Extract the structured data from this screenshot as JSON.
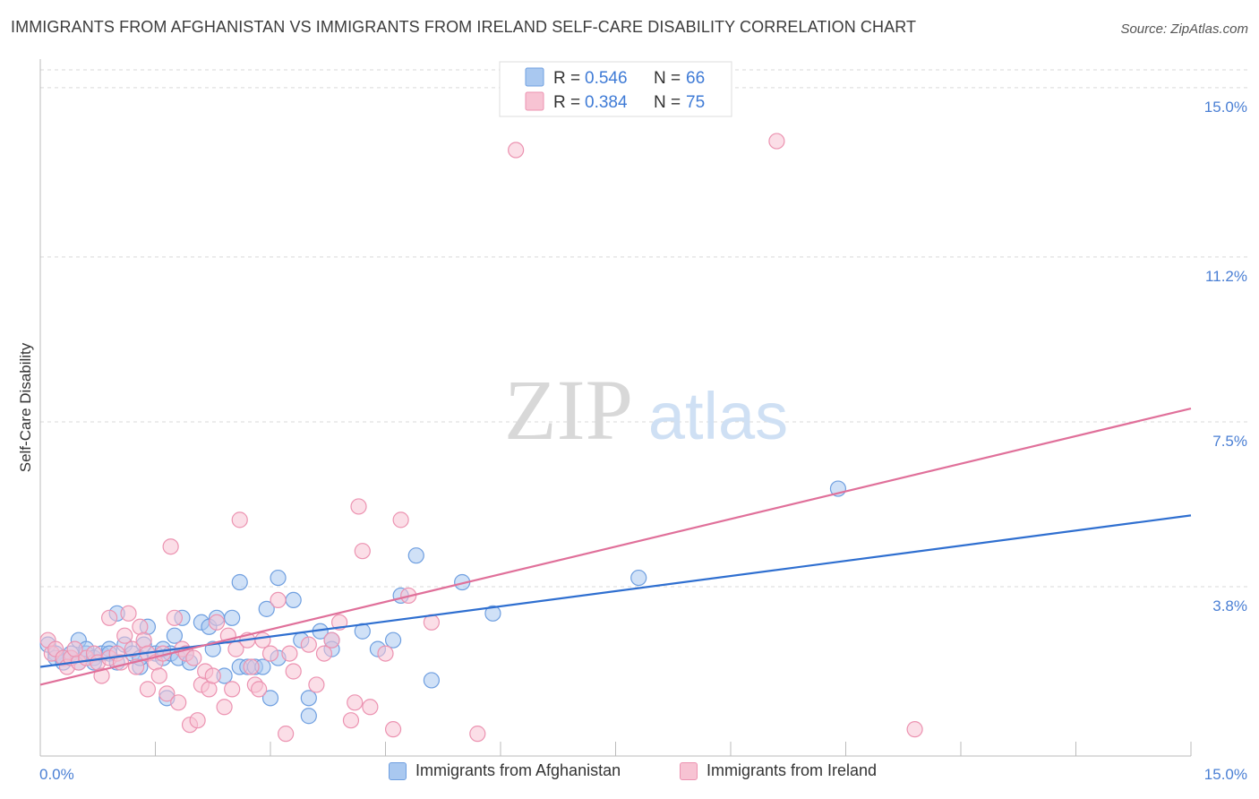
{
  "header": {
    "title": "IMMIGRANTS FROM AFGHANISTAN VS IMMIGRANTS FROM IRELAND SELF-CARE DISABILITY CORRELATION CHART",
    "source": "Source: ZipAtlas.com"
  },
  "watermark": {
    "zip": "ZIP",
    "atlas": "atlas"
  },
  "colors": {
    "afghanistan_fill": "#a9c8f0",
    "afghanistan_stroke": "#6f9fe0",
    "afghanistan_line": "#2f6fd0",
    "ireland_fill": "#f7c3d3",
    "ireland_stroke": "#ec93b1",
    "ireland_line": "#e0709a",
    "tick_label": "#4a7fd4",
    "grid": "#d9d9d9"
  },
  "legend_top": {
    "rows": [
      {
        "r_label": "R = ",
        "r_value": "0.546",
        "n_label": "N = ",
        "n_value": "66"
      },
      {
        "r_label": "R = ",
        "r_value": "0.384",
        "n_label": "N = ",
        "n_value": "75"
      }
    ]
  },
  "legend_bottom": {
    "items": [
      "Immigrants from Afghanistan",
      "Immigrants from Ireland"
    ]
  },
  "chart_data": {
    "type": "scatter",
    "title": "IMMIGRANTS FROM AFGHANISTAN VS IMMIGRANTS FROM IRELAND SELF-CARE DISABILITY CORRELATION CHART",
    "xlabel": "",
    "ylabel": "Self-Care Disability",
    "xlim": [
      0,
      15
    ],
    "ylim": [
      0,
      15.4
    ],
    "x_tick_labels": [
      "0.0%",
      "15.0%"
    ],
    "y_ticks": [
      3.8,
      7.5,
      11.2,
      15.0
    ],
    "y_tick_labels": [
      "3.8%",
      "7.5%",
      "11.2%",
      "15.0%"
    ],
    "x_minor_ticks": [
      1.5,
      3.0,
      4.5,
      6.0,
      7.5,
      9.0,
      10.5,
      12.0,
      13.5,
      15.0
    ],
    "grid": true,
    "legend": "top-center",
    "series": [
      {
        "name": "Immigrants from Afghanistan",
        "R": 0.546,
        "N": 66,
        "trend": {
          "x": [
            0,
            15
          ],
          "y": [
            2.0,
            5.4
          ]
        },
        "points": [
          [
            0.1,
            2.5
          ],
          [
            0.2,
            2.3
          ],
          [
            0.2,
            2.2
          ],
          [
            0.3,
            2.1
          ],
          [
            0.3,
            2.2
          ],
          [
            0.4,
            2.2
          ],
          [
            0.4,
            2.3
          ],
          [
            0.5,
            2.6
          ],
          [
            0.5,
            2.1
          ],
          [
            0.6,
            2.3
          ],
          [
            0.6,
            2.4
          ],
          [
            0.7,
            2.2
          ],
          [
            0.7,
            2.1
          ],
          [
            0.8,
            2.3
          ],
          [
            0.9,
            2.4
          ],
          [
            0.9,
            2.3
          ],
          [
            1.0,
            2.1
          ],
          [
            1.0,
            3.2
          ],
          [
            1.1,
            2.5
          ],
          [
            1.2,
            2.3
          ],
          [
            1.3,
            2.0
          ],
          [
            1.3,
            2.2
          ],
          [
            1.35,
            2.5
          ],
          [
            1.4,
            2.9
          ],
          [
            1.5,
            2.3
          ],
          [
            1.6,
            2.2
          ],
          [
            1.6,
            2.4
          ],
          [
            1.65,
            1.3
          ],
          [
            1.7,
            2.3
          ],
          [
            1.75,
            2.7
          ],
          [
            1.8,
            2.2
          ],
          [
            1.85,
            3.1
          ],
          [
            1.9,
            2.3
          ],
          [
            1.95,
            2.1
          ],
          [
            2.1,
            3.0
          ],
          [
            2.2,
            2.9
          ],
          [
            2.25,
            2.4
          ],
          [
            2.3,
            3.1
          ],
          [
            2.4,
            1.8
          ],
          [
            2.5,
            3.1
          ],
          [
            2.6,
            3.9
          ],
          [
            2.6,
            2.0
          ],
          [
            2.7,
            2.0
          ],
          [
            2.8,
            2.0
          ],
          [
            2.9,
            2.0
          ],
          [
            2.95,
            3.3
          ],
          [
            3.0,
            1.3
          ],
          [
            3.1,
            4.0
          ],
          [
            3.1,
            2.2
          ],
          [
            3.3,
            3.5
          ],
          [
            3.4,
            2.6
          ],
          [
            3.5,
            1.3
          ],
          [
            3.5,
            0.9
          ],
          [
            3.65,
            2.8
          ],
          [
            3.8,
            2.6
          ],
          [
            3.8,
            2.4
          ],
          [
            4.2,
            2.8
          ],
          [
            4.4,
            2.4
          ],
          [
            4.6,
            2.6
          ],
          [
            4.7,
            3.6
          ],
          [
            4.9,
            4.5
          ],
          [
            5.1,
            1.7
          ],
          [
            5.5,
            3.9
          ],
          [
            5.9,
            3.2
          ],
          [
            7.8,
            4.0
          ],
          [
            10.4,
            6.0
          ]
        ]
      },
      {
        "name": "Immigrants from Ireland",
        "R": 0.384,
        "N": 75,
        "trend": {
          "x": [
            0,
            15
          ],
          "y": [
            1.6,
            7.8
          ]
        },
        "points": [
          [
            0.1,
            2.6
          ],
          [
            0.15,
            2.3
          ],
          [
            0.2,
            2.4
          ],
          [
            0.3,
            2.2
          ],
          [
            0.35,
            2.0
          ],
          [
            0.4,
            2.2
          ],
          [
            0.5,
            2.1
          ],
          [
            0.6,
            2.2
          ],
          [
            0.7,
            2.3
          ],
          [
            0.75,
            2.1
          ],
          [
            0.8,
            1.8
          ],
          [
            0.9,
            2.2
          ],
          [
            1.0,
            2.3
          ],
          [
            1.05,
            2.1
          ],
          [
            1.1,
            2.7
          ],
          [
            1.15,
            3.2
          ],
          [
            1.2,
            2.4
          ],
          [
            1.25,
            2.0
          ],
          [
            1.3,
            2.9
          ],
          [
            1.35,
            2.6
          ],
          [
            1.4,
            2.3
          ],
          [
            1.4,
            1.5
          ],
          [
            1.5,
            2.1
          ],
          [
            1.55,
            1.8
          ],
          [
            1.6,
            2.3
          ],
          [
            1.65,
            1.4
          ],
          [
            1.7,
            4.7
          ],
          [
            1.75,
            3.1
          ],
          [
            1.8,
            1.2
          ],
          [
            1.85,
            2.4
          ],
          [
            1.9,
            2.3
          ],
          [
            1.95,
            0.7
          ],
          [
            2.0,
            2.2
          ],
          [
            2.05,
            0.8
          ],
          [
            2.1,
            1.6
          ],
          [
            2.15,
            1.9
          ],
          [
            2.2,
            1.5
          ],
          [
            2.25,
            1.8
          ],
          [
            2.3,
            3.0
          ],
          [
            2.4,
            1.1
          ],
          [
            2.45,
            2.7
          ],
          [
            2.5,
            1.5
          ],
          [
            2.55,
            2.4
          ],
          [
            2.6,
            5.3
          ],
          [
            2.7,
            2.6
          ],
          [
            2.75,
            2.0
          ],
          [
            2.8,
            1.6
          ],
          [
            2.85,
            1.5
          ],
          [
            2.9,
            2.6
          ],
          [
            3.0,
            2.3
          ],
          [
            3.1,
            3.5
          ],
          [
            3.2,
            0.5
          ],
          [
            3.25,
            2.3
          ],
          [
            3.3,
            1.9
          ],
          [
            3.5,
            2.5
          ],
          [
            3.6,
            1.6
          ],
          [
            3.7,
            2.3
          ],
          [
            3.8,
            2.6
          ],
          [
            3.9,
            3.0
          ],
          [
            4.05,
            0.8
          ],
          [
            4.1,
            1.2
          ],
          [
            4.15,
            5.6
          ],
          [
            4.2,
            4.6
          ],
          [
            4.3,
            1.1
          ],
          [
            4.5,
            2.3
          ],
          [
            4.6,
            0.6
          ],
          [
            4.7,
            5.3
          ],
          [
            4.8,
            3.6
          ],
          [
            5.1,
            3.0
          ],
          [
            5.7,
            0.5
          ],
          [
            6.2,
            13.6
          ],
          [
            9.6,
            13.8
          ],
          [
            11.4,
            0.6
          ],
          [
            0.9,
            3.1
          ],
          [
            0.45,
            2.4
          ]
        ]
      }
    ]
  }
}
